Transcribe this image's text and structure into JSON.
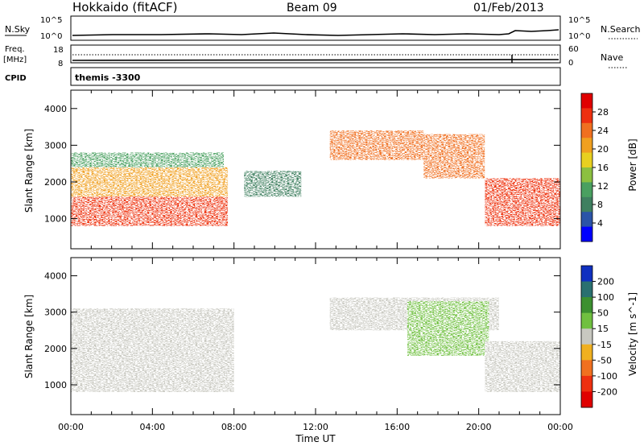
{
  "header": {
    "station": "Hokkaido (fitACF)",
    "beam": "Beam 09",
    "date": "01/Feb/2013"
  },
  "strip_panels": {
    "nsky": {
      "left_label": "N.Sky",
      "right_label": "N.Search",
      "left_ticks": [
        "10^5",
        "10^0"
      ],
      "right_ticks": [
        "10^5",
        "10^0"
      ]
    },
    "freq": {
      "left_label_top": "Freq.",
      "left_label_bottom": "[MHz]",
      "right_label": "Nave",
      "left_ticks": [
        "18",
        "8"
      ],
      "right_ticks": [
        "60",
        "0"
      ]
    },
    "cpid": {
      "left_label": "CPID",
      "program": "themis -3300"
    }
  },
  "chart_data": [
    {
      "type": "heatmap",
      "title": "",
      "xlabel": "Time UT",
      "ylabel": "Slant Range [km]",
      "ylim": [
        180,
        4500
      ],
      "xlim": [
        "00:00",
        "24:00"
      ],
      "x_ticks": [
        "00:00",
        "04:00",
        "08:00",
        "12:00",
        "16:00",
        "20:00",
        "00:00"
      ],
      "y_ticks": [
        1000,
        2000,
        3000,
        4000
      ],
      "colorbar": {
        "label": "Power [dB]",
        "ticks": [
          "4",
          "8",
          "12",
          "16",
          "20",
          "24",
          "28"
        ],
        "colors": [
          "#0000ff",
          "#2b54a8",
          "#3f8060",
          "#4aa060",
          "#8cc040",
          "#e8d020",
          "#f0a020",
          "#f07020",
          "#ee3010",
          "#e00000"
        ]
      },
      "regions": [
        {
          "t_start": 0.0,
          "t_end": 7.7,
          "r_low": 800,
          "r_high": 1600,
          "value": 28
        },
        {
          "t_start": 0.0,
          "t_end": 7.7,
          "r_low": 1600,
          "r_high": 2400,
          "value": 20
        },
        {
          "t_start": 0.0,
          "t_end": 7.5,
          "r_low": 2400,
          "r_high": 2800,
          "value": 12
        },
        {
          "t_start": 12.7,
          "t_end": 17.3,
          "r_low": 2600,
          "r_high": 3400,
          "value": 24
        },
        {
          "t_start": 17.3,
          "t_end": 20.3,
          "r_low": 2100,
          "r_high": 3300,
          "value": 24
        },
        {
          "t_start": 20.3,
          "t_end": 24.0,
          "r_low": 800,
          "r_high": 2100,
          "value": 26
        },
        {
          "t_start": 8.5,
          "t_end": 11.3,
          "r_low": 1600,
          "r_high": 2300,
          "value": 8
        }
      ]
    },
    {
      "type": "heatmap",
      "title": "",
      "xlabel": "Time UT",
      "ylabel": "Slant Range [km]",
      "ylim": [
        180,
        4500
      ],
      "xlim": [
        "00:00",
        "24:00"
      ],
      "x_ticks": [
        "00:00",
        "04:00",
        "08:00",
        "12:00",
        "16:00",
        "20:00",
        "00:00"
      ],
      "y_ticks": [
        1000,
        2000,
        3000,
        4000
      ],
      "colorbar": {
        "label": "Velocity [m s^-1]",
        "ticks": [
          "200",
          "100",
          "50",
          "15",
          "-15",
          "-50",
          "-100",
          "-200"
        ],
        "colors": [
          "#1030c0",
          "#2a7070",
          "#3c9030",
          "#70c040",
          "#c8c8c0",
          "#f0b020",
          "#f07020",
          "#ee3010",
          "#e00000"
        ]
      },
      "regions": [
        {
          "t_start": 0.0,
          "t_end": 8.0,
          "r_low": 800,
          "r_high": 3100,
          "value": 0
        },
        {
          "t_start": 12.7,
          "t_end": 21.0,
          "r_low": 2500,
          "r_high": 3400,
          "value": 0
        },
        {
          "t_start": 16.5,
          "t_end": 20.5,
          "r_low": 1800,
          "r_high": 3300,
          "value": 30
        },
        {
          "t_start": 20.3,
          "t_end": 24.0,
          "r_low": 800,
          "r_high": 2200,
          "value": 0
        }
      ]
    }
  ]
}
